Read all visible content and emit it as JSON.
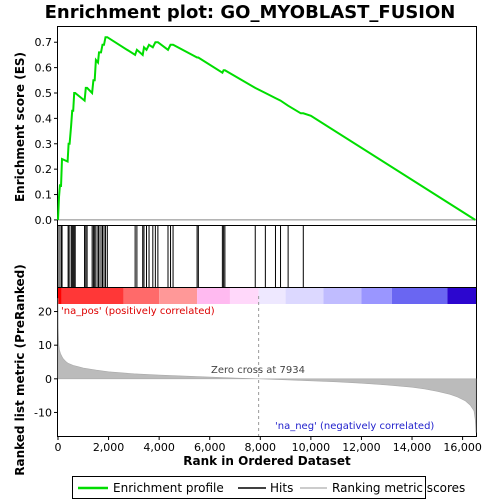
{
  "chart_data": {
    "type": "line",
    "title": "Enrichment plot: GO_MYOBLAST_FUSION",
    "top_panel": {
      "ylabel": "Enrichment score (ES)",
      "ylim": [
        -0.02,
        0.76
      ],
      "yticks": [
        0.0,
        0.1,
        0.2,
        0.3,
        0.4,
        0.5,
        0.6,
        0.7
      ],
      "ytick_labels": [
        "0.0",
        "0.1",
        "0.2",
        "0.3",
        "0.4",
        "0.5",
        "0.6",
        "0.7"
      ],
      "series": [
        {
          "name": "Enrichment profile",
          "color": "#00dd00",
          "x": [
            0,
            40,
            80,
            120,
            160,
            380,
            420,
            460,
            520,
            560,
            600,
            640,
            680,
            1050,
            1100,
            1150,
            1350,
            1400,
            1450,
            1500,
            1580,
            1620,
            1700,
            1760,
            1820,
            1880,
            1950,
            3050,
            3120,
            3350,
            3400,
            3500,
            3600,
            3750,
            3850,
            3950,
            4350,
            4450,
            4550,
            5500,
            5550,
            6500,
            6550,
            6600,
            7800,
            8200,
            8600,
            8800,
            9100,
            9600,
            9700,
            10000,
            16500
          ],
          "y": [
            0.0,
            0.09,
            0.14,
            0.13,
            0.24,
            0.23,
            0.3,
            0.3,
            0.37,
            0.43,
            0.43,
            0.5,
            0.5,
            0.47,
            0.52,
            0.52,
            0.5,
            0.55,
            0.55,
            0.63,
            0.62,
            0.66,
            0.66,
            0.69,
            0.69,
            0.72,
            0.72,
            0.65,
            0.67,
            0.65,
            0.68,
            0.67,
            0.69,
            0.68,
            0.7,
            0.7,
            0.67,
            0.69,
            0.69,
            0.64,
            0.64,
            0.58,
            0.59,
            0.59,
            0.52,
            0.5,
            0.48,
            0.47,
            0.45,
            0.42,
            0.42,
            0.41,
            0.0
          ]
        }
      ]
    },
    "hits": {
      "name": "Hits",
      "x": [
        40,
        120,
        160,
        400,
        440,
        520,
        560,
        600,
        640,
        680,
        1050,
        1100,
        1150,
        1350,
        1400,
        1450,
        1500,
        1580,
        1620,
        1700,
        1760,
        1820,
        1880,
        1950,
        3050,
        3120,
        3350,
        3400,
        3500,
        3600,
        3750,
        3850,
        3950,
        4350,
        4450,
        4550,
        5500,
        5550,
        6500,
        6550,
        6600,
        7800,
        8200,
        8600,
        8800,
        9100,
        9700
      ]
    },
    "bottom_panel": {
      "ylabel": "Ranked list metric (PreRanked)",
      "xlabel": "Rank in Ordered Dataset",
      "ylim": [
        -17,
        27
      ],
      "yticks": [
        20,
        10,
        0,
        -10
      ],
      "ytick_labels": [
        "20",
        "10",
        "0",
        "-10"
      ],
      "series": [
        {
          "name": "Ranking metric scores",
          "color": "#bbbbbb",
          "x": [
            0,
            10,
            30,
            60,
            100,
            150,
            200,
            300,
            400,
            600,
            800,
            1000,
            1500,
            2000,
            3000,
            4000,
            5000,
            6000,
            7000,
            7934,
            9000,
            10000,
            11000,
            12000,
            13000,
            14000,
            14500,
            15000,
            15500,
            15800,
            16100,
            16300,
            16450,
            16500,
            16530
          ],
          "y": [
            24,
            15,
            10,
            8.5,
            7.5,
            6.7,
            6,
            5.2,
            4.6,
            4,
            3.6,
            3.2,
            2.6,
            2.1,
            1.5,
            1.1,
            0.8,
            0.5,
            0.25,
            0,
            -0.3,
            -0.6,
            -0.9,
            -1.3,
            -1.8,
            -2.5,
            -3,
            -3.7,
            -4.6,
            -5.4,
            -6.5,
            -7.8,
            -9.5,
            -12,
            -16
          ]
        }
      ],
      "annotations": {
        "zero_cross": "Zero cross at 7934",
        "pos_label": "'na_pos' (positively correlated)",
        "neg_label": "'na_neg' (negatively correlated)"
      }
    },
    "x_axis": {
      "xlim": [
        0,
        16530
      ],
      "xticks": [
        0,
        2000,
        4000,
        6000,
        8000,
        10000,
        12000,
        14000,
        16000
      ],
      "xtick_labels": [
        "0",
        "2,000",
        "4,000",
        "6,000",
        "8,000",
        "10,000",
        "12,000",
        "14,000",
        "16,000"
      ]
    },
    "color_bar": {
      "segments": [
        {
          "from": 0,
          "to": 150,
          "color": "#ff0000"
        },
        {
          "from": 150,
          "to": 2600,
          "color": "#ff3737"
        },
        {
          "from": 2600,
          "to": 4000,
          "color": "#ff6a6a"
        },
        {
          "from": 4000,
          "to": 5500,
          "color": "#ff9898"
        },
        {
          "from": 5500,
          "to": 6800,
          "color": "#ffbaf0"
        },
        {
          "from": 6800,
          "to": 7934,
          "color": "#ffd8fa"
        },
        {
          "from": 7934,
          "to": 9000,
          "color": "#eee8ff"
        },
        {
          "from": 9000,
          "to": 10500,
          "color": "#dcd8ff"
        },
        {
          "from": 10500,
          "to": 12000,
          "color": "#c0bcff"
        },
        {
          "from": 12000,
          "to": 13200,
          "color": "#9a96ff"
        },
        {
          "from": 13200,
          "to": 15400,
          "color": "#6a66f2"
        },
        {
          "from": 15400,
          "to": 16530,
          "color": "#2c06cf"
        }
      ]
    },
    "legend": {
      "placement": "bottom",
      "items": [
        {
          "label": "Enrichment profile",
          "color": "#00dd00"
        },
        {
          "label": "Hits",
          "color": "#000000"
        },
        {
          "label": "Ranking metric scores",
          "color": "#bbbbbb"
        }
      ]
    },
    "grid": false
  }
}
